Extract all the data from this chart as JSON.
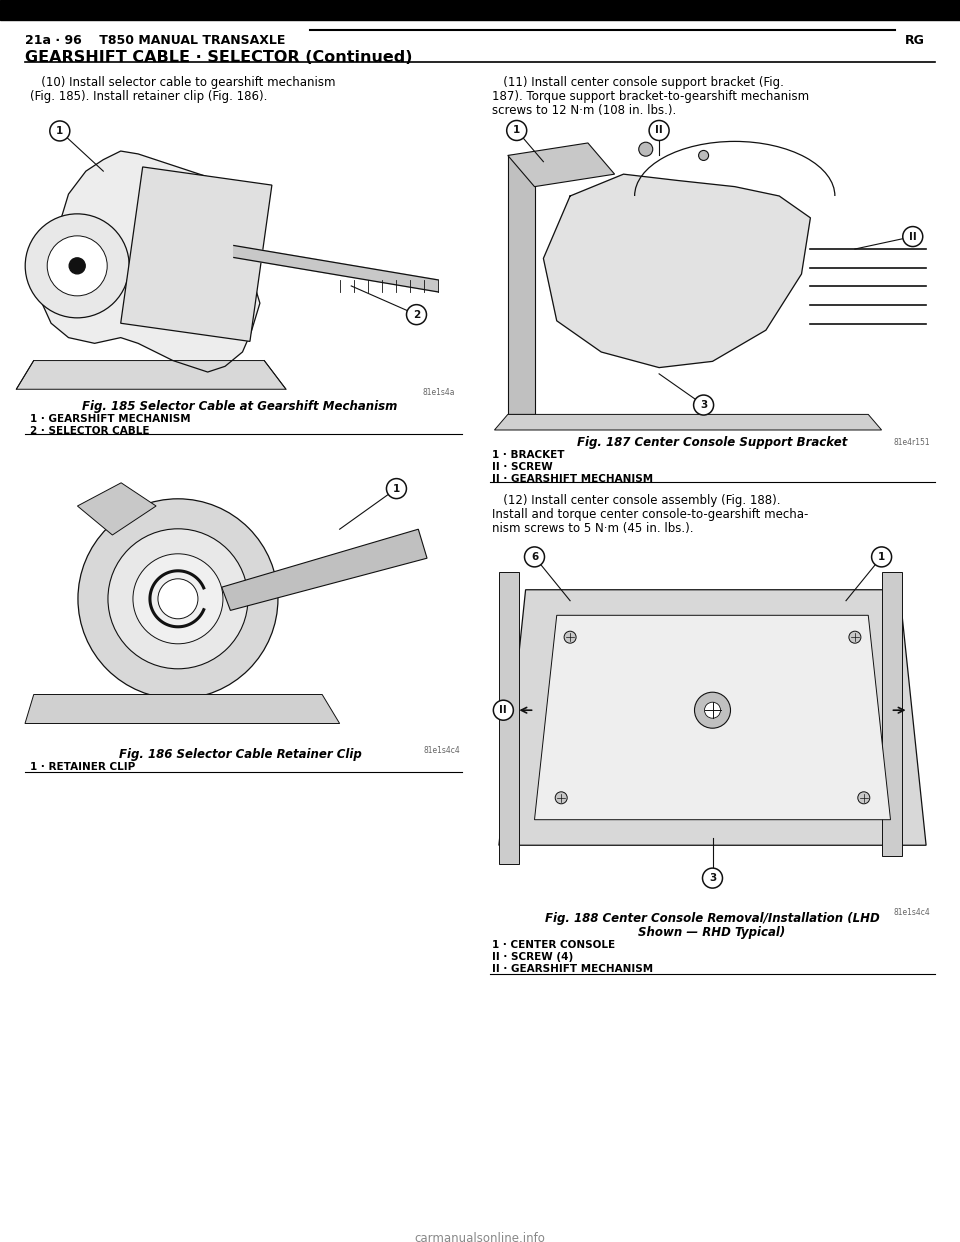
{
  "bg_color": "#ffffff",
  "text_color": "#000000",
  "header_left": "21a · 96    T850 MANUAL TRANSAXLE",
  "header_right": "RG",
  "section_title": "GEARSHIFT CABLE · SELECTOR (Continued)",
  "para10_line1": "   (10) Install selector cable to gearshift mechanism",
  "para10_line2": "(Fig. 185). Install retainer clip (Fig. 186).",
  "para11_line1": "   (11) Install center console support bracket (Fig.",
  "para11_line2": "187). Torque support bracket-to-gearshift mechanism",
  "para11_line3": "screws to 12 N·m (108 in. lbs.).",
  "para12_line1": "   (12) Install center console assembly (Fig. 188).",
  "para12_line2": "Install and torque center console-to-gearshift mecha-",
  "para12_line3": "nism screws to 5 N·m (45 in. lbs.).",
  "fig185_caption_italic": "Fig. 185 Selector Cable at Gearshift Mechanism",
  "fig185_label1": "1 · GEARSHIFT MECHANISM",
  "fig185_label2": "2 · SELECTOR CABLE",
  "fig186_caption_italic": "Fig. 186 Selector Cable Retainer Clip",
  "fig186_label1": "1 · RETAINER CLIP",
  "fig187_caption_italic": "Fig. 187 Center Console Support Bracket",
  "fig187_label1": "1 · BRACKET",
  "fig187_label2": "II · SCREW",
  "fig187_label3": "II · GEARSHIFT MECHANISM",
  "fig188_caption_italic1": "Fig. 188 Center Console Removal/Installation (LHD",
  "fig188_caption_italic2": "Shown — RHD Typical)",
  "fig188_label1": "1 · CENTER CONSOLE",
  "fig188_label2": "II · SCREW (4)",
  "fig188_label3": "II · GEARSHIFT MECHANISM",
  "watermark": "carmanualsonline.info",
  "img_tag185": "81e1s4a",
  "img_tag186": "81e1s4c4",
  "img_tag187": "81e4r151",
  "img_tag188": "81e1s4c4"
}
